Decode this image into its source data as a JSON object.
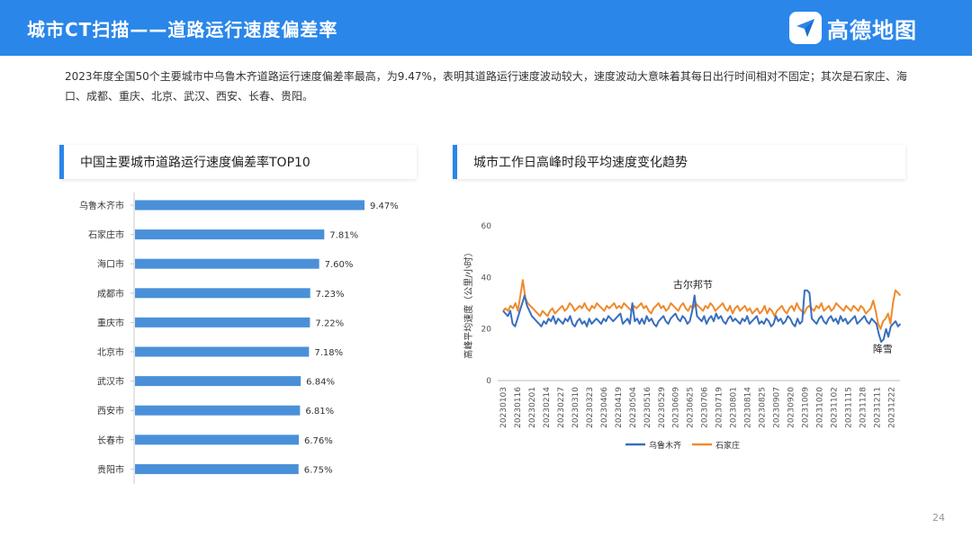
{
  "header": {
    "title": "城市CT扫描——道路运行速度偏差率",
    "logo_text": "高德地图",
    "logo_icon": "send-arrow-icon"
  },
  "intro_text": "2023年度全国50个主要城市中乌鲁木齐道路运行速度偏差率最高，为9.47%，表明其道路运行速度波动较大，速度波动大意味着其每日出行时间相对不固定；其次是石家庄、海口、成都、重庆、北京、武汉、西安、长春、贵阳。",
  "page_number": "24",
  "left_panel": {
    "title": "中国主要城市道路运行速度偏差率TOP10"
  },
  "right_panel": {
    "title": "城市工作日高峰时段平均速度变化趋势"
  },
  "colors": {
    "accent": "#2a86e9",
    "bar": "#4a90d9",
    "series_urumqi": "#3a6fbd",
    "series_shijiazhuang": "#ef8a2e"
  },
  "chart_data": [
    {
      "type": "bar",
      "orientation": "horizontal",
      "title": "中国主要城市道路运行速度偏差率TOP10",
      "categories": [
        "乌鲁木齐市",
        "石家庄市",
        "海口市",
        "成都市",
        "重庆市",
        "北京市",
        "武汉市",
        "西安市",
        "长春市",
        "贵阳市"
      ],
      "values": [
        9.47,
        7.81,
        7.6,
        7.23,
        7.22,
        7.18,
        6.84,
        6.81,
        6.76,
        6.75
      ],
      "labels": [
        "9.47%",
        "7.81%",
        "7.60%",
        "7.23%",
        "7.22%",
        "7.18%",
        "6.84%",
        "6.81%",
        "6.76%",
        "6.75%"
      ],
      "xlim": [
        0,
        10
      ]
    },
    {
      "type": "line",
      "title": "城市工作日高峰时段平均速度变化趋势",
      "ylabel": "高峰平均速度（公里/小时）",
      "ylim": [
        0,
        60
      ],
      "yticks": [
        "0",
        "20",
        "40",
        "60"
      ],
      "xticks": [
        "20230103",
        "20230116",
        "20230201",
        "20230214",
        "20230227",
        "20230310",
        "20230323",
        "20230406",
        "20230419",
        "20230504",
        "20230516",
        "20230529",
        "20230609",
        "20230625",
        "20230706",
        "20230719",
        "20230801",
        "20230814",
        "20230825",
        "20230907",
        "20230920",
        "20231009",
        "20231020",
        "20231102",
        "20231115",
        "20231128",
        "20231211",
        "20231222"
      ],
      "legend_position": "bottom",
      "annotations": [
        {
          "text": "古尔邦节",
          "x_index": 13.2,
          "y": 36
        },
        {
          "text": "降雪",
          "x_index": 26.4,
          "y": 11
        }
      ],
      "series": [
        {
          "name": "乌鲁木齐",
          "values": [
            27,
            26,
            25,
            27,
            22,
            21,
            24,
            27,
            30,
            33,
            29,
            27,
            25,
            24,
            23,
            22,
            21,
            23,
            22,
            24,
            23,
            25,
            22,
            24,
            23,
            22,
            24,
            23,
            25,
            22,
            21,
            23,
            24,
            22,
            23,
            21,
            24,
            22,
            23,
            24,
            23,
            22,
            24,
            23,
            25,
            24,
            23,
            24,
            25,
            26,
            22,
            23,
            24,
            22,
            30,
            23,
            24,
            22,
            24,
            22,
            25,
            23,
            24,
            22,
            21,
            23,
            24,
            25,
            23,
            22,
            24,
            25,
            26,
            24,
            23,
            25,
            24,
            22,
            23,
            27,
            33,
            25,
            24,
            23,
            25,
            22,
            24,
            25,
            23,
            26,
            24,
            25,
            23,
            22,
            24,
            25,
            23,
            24,
            23,
            22,
            24,
            23,
            25,
            22,
            23,
            24,
            25,
            22,
            23,
            22,
            24,
            23,
            21,
            22,
            25,
            23,
            24,
            22,
            23,
            25,
            24,
            22,
            21,
            24,
            22,
            23,
            35,
            35,
            34,
            24,
            23,
            22,
            24,
            25,
            23,
            22,
            24,
            25,
            23,
            24,
            22,
            25,
            23,
            24,
            22,
            23,
            24,
            25,
            22,
            23,
            24,
            25,
            23,
            22,
            24,
            23,
            22,
            18,
            15,
            16,
            20,
            17,
            21,
            22,
            23,
            21,
            22
          ]
        },
        {
          "name": "石家庄",
          "values": [
            27,
            28,
            27,
            29,
            28,
            30,
            27,
            33,
            39,
            32,
            30,
            29,
            28,
            27,
            26,
            25,
            27,
            26,
            25,
            27,
            28,
            26,
            27,
            28,
            29,
            27,
            28,
            30,
            29,
            27,
            28,
            29,
            28,
            30,
            28,
            27,
            29,
            28,
            30,
            29,
            28,
            27,
            29,
            28,
            29,
            30,
            28,
            29,
            28,
            30,
            29,
            28,
            27,
            29,
            28,
            29,
            30,
            28,
            29,
            27,
            26,
            28,
            29,
            30,
            28,
            29,
            27,
            28,
            30,
            29,
            28,
            27,
            29,
            30,
            28,
            27,
            29,
            28,
            30,
            29,
            28,
            27,
            29,
            28,
            30,
            29,
            27,
            28,
            29,
            30,
            28,
            27,
            29,
            26,
            28,
            29,
            27,
            28,
            29,
            27,
            28,
            26,
            27,
            28,
            26,
            27,
            29,
            26,
            28,
            27,
            25,
            27,
            28,
            29,
            27,
            26,
            28,
            29,
            27,
            30,
            28,
            27,
            26,
            28,
            29,
            28,
            27,
            29,
            28,
            30,
            27,
            28,
            29,
            27,
            28,
            30,
            29,
            28,
            27,
            29,
            28,
            27,
            29,
            28,
            27,
            29,
            28,
            26,
            27,
            28,
            31,
            27,
            22,
            20,
            23,
            24,
            26,
            22,
            30,
            35,
            34,
            33
          ]
        }
      ]
    }
  ]
}
